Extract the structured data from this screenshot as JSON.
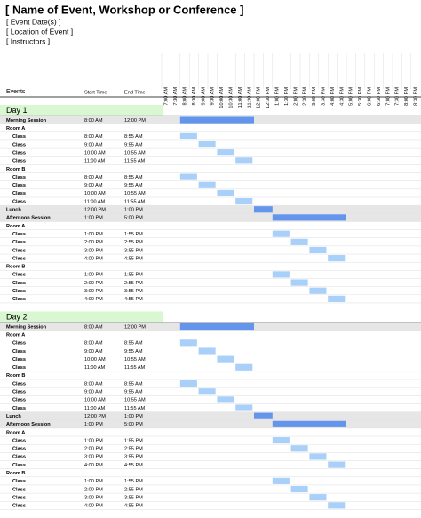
{
  "header": {
    "title": "[ Name of Event, Workshop or Conference ]",
    "event_dates": "[ Event Date(s) ]",
    "location": "[ Location of Event ]",
    "instructors": "[ Instructors ]"
  },
  "columns": {
    "events": "Events",
    "start": "Start Time",
    "end": "End Time"
  },
  "time_slots": [
    "7:00 AM",
    "7:30 AM",
    "8:00 AM",
    "8:30 AM",
    "9:00 AM",
    "9:30 AM",
    "10:00 AM",
    "10:30 AM",
    "11:00 AM",
    "11:30 AM",
    "12:00 PM",
    "12:30 PM",
    "1:00 PM",
    "1:30 PM",
    "2:00 PM",
    "2:30 PM",
    "3:00 PM",
    "3:30 PM",
    "4:00 PM",
    "4:30 PM",
    "5:00 PM",
    "5:30 PM",
    "6:00 PM",
    "6:30 PM",
    "7:00 PM",
    "7:30 PM",
    "8:00 PM",
    "8:30 PM"
  ],
  "days": [
    {
      "label": "Day 1",
      "rows": [
        {
          "label": "Morning Session",
          "start": "8:00 AM",
          "end": "12:00 PM"
        },
        {
          "label": "Room A"
        },
        {
          "label": "Class",
          "start": "8:00 AM",
          "end": "8:55 AM"
        },
        {
          "label": "Class",
          "start": "9:00 AM",
          "end": "9:55 AM"
        },
        {
          "label": "Class",
          "start": "10:00 AM",
          "end": "10:55 AM"
        },
        {
          "label": "Class",
          "start": "11:00 AM",
          "end": "11:55 AM"
        },
        {
          "label": "Room B"
        },
        {
          "label": "Class",
          "start": "8:00 AM",
          "end": "8:55 AM"
        },
        {
          "label": "Class",
          "start": "9:00 AM",
          "end": "9:55 AM"
        },
        {
          "label": "Class",
          "start": "10:00 AM",
          "end": "10:55 AM"
        },
        {
          "label": "Class",
          "start": "11:00 AM",
          "end": "11:55 AM"
        },
        {
          "label": "Lunch",
          "start": "12:00 PM",
          "end": "1:00 PM"
        },
        {
          "label": "Afternoon Session",
          "start": "1:00 PM",
          "end": "5:00 PM"
        },
        {
          "label": "Room A"
        },
        {
          "label": "Class",
          "start": "1:00 PM",
          "end": "1:55 PM"
        },
        {
          "label": "Class",
          "start": "2:00 PM",
          "end": "2:55 PM"
        },
        {
          "label": "Class",
          "start": "3:00 PM",
          "end": "3:55 PM"
        },
        {
          "label": "Class",
          "start": "4:00 PM",
          "end": "4:55 PM"
        },
        {
          "label": "Room B"
        },
        {
          "label": "Class",
          "start": "1:00 PM",
          "end": "1:55 PM"
        },
        {
          "label": "Class",
          "start": "2:00 PM",
          "end": "2:55 PM"
        },
        {
          "label": "Class",
          "start": "3:00 PM",
          "end": "3:55 PM"
        },
        {
          "label": "Class",
          "start": "4:00 PM",
          "end": "4:55 PM"
        }
      ]
    },
    {
      "label": "Day 2",
      "rows": [
        {
          "label": "Morning Session",
          "start": "8:00 AM",
          "end": "12:00 PM"
        },
        {
          "label": "Room A"
        },
        {
          "label": "Class",
          "start": "8:00 AM",
          "end": "8:55 AM"
        },
        {
          "label": "Class",
          "start": "9:00 AM",
          "end": "9:55 AM"
        },
        {
          "label": "Class",
          "start": "10:00 AM",
          "end": "10:55 AM"
        },
        {
          "label": "Class",
          "start": "11:00 AM",
          "end": "11:55 AM"
        },
        {
          "label": "Room B"
        },
        {
          "label": "Class",
          "start": "8:00 AM",
          "end": "8:55 AM"
        },
        {
          "label": "Class",
          "start": "9:00 AM",
          "end": "9:55 AM"
        },
        {
          "label": "Class",
          "start": "10:00 AM",
          "end": "10:55 AM"
        },
        {
          "label": "Class",
          "start": "11:00 AM",
          "end": "11:55 AM"
        },
        {
          "label": "Lunch",
          "start": "12:00 PM",
          "end": "1:00 PM"
        },
        {
          "label": "Afternoon Session",
          "start": "1:00 PM",
          "end": "5:00 PM"
        },
        {
          "label": "Room A"
        },
        {
          "label": "Class",
          "start": "1:00 PM",
          "end": "1:55 PM"
        },
        {
          "label": "Class",
          "start": "2:00 PM",
          "end": "2:55 PM"
        },
        {
          "label": "Class",
          "start": "3:00 PM",
          "end": "3:55 PM"
        },
        {
          "label": "Class",
          "start": "4:00 PM",
          "end": "4:55 PM"
        },
        {
          "label": "Room B"
        },
        {
          "label": "Class",
          "start": "1:00 PM",
          "end": "1:55 PM"
        },
        {
          "label": "Class",
          "start": "2:00 PM",
          "end": "2:55 PM"
        },
        {
          "label": "Class",
          "start": "3:00 PM",
          "end": "3:55 PM"
        },
        {
          "label": "Class",
          "start": "4:00 PM",
          "end": "4:55 PM"
        }
      ]
    }
  ]
}
